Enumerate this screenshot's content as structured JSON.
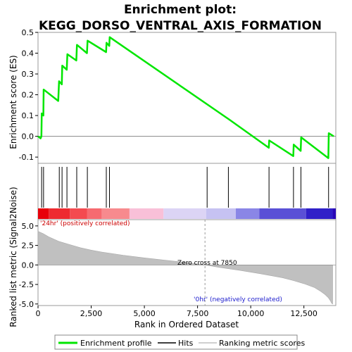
{
  "chart_data": {
    "type": "line",
    "title_line1": "Enrichment plot:",
    "title_line2": "KEGG_DORSO_VENTRAL_AXIS_FORMATION",
    "xlabel": "Rank in Ordered Dataset",
    "es_ylabel": "Enrichment score (ES)",
    "metric_ylabel": "Ranked list metric (Signal2Noise)",
    "xlim": [
      0,
      14000
    ],
    "es_ylim": [
      -0.13,
      0.5
    ],
    "metric_ylim": [
      -5.2,
      5.8
    ],
    "x_ticks": [
      0,
      2500,
      5000,
      7500,
      10000,
      12500
    ],
    "x_tick_labels": [
      "0",
      "2,500",
      "5,000",
      "7,500",
      "10,000",
      "12,500"
    ],
    "es_ticks": [
      -0.1,
      0.0,
      0.1,
      0.2,
      0.3,
      0.4,
      0.5
    ],
    "es_tick_labels": [
      "-0.1",
      "0.0",
      "0.1",
      "0.2",
      "0.3",
      "0.4",
      "0.5"
    ],
    "metric_ticks": [
      -5.0,
      -2.5,
      0.0,
      2.5,
      5.0
    ],
    "metric_tick_labels": [
      "-5.0",
      "-2.5",
      "0.0",
      "2.5",
      "5.0"
    ],
    "es_curve": {
      "x": [
        0,
        120,
        160,
        175,
        250,
        265,
        950,
        990,
        1120,
        1140,
        1350,
        1380,
        1800,
        1830,
        2300,
        2330,
        3200,
        3220,
        3350,
        3370,
        9000,
        10850,
        10870,
        12000,
        12020,
        12350,
        12370,
        13650,
        13670,
        13900
      ],
      "y": [
        0.0,
        -0.01,
        0.0,
        0.11,
        0.1,
        0.225,
        0.17,
        0.265,
        0.25,
        0.34,
        0.32,
        0.395,
        0.365,
        0.44,
        0.4,
        0.46,
        0.405,
        0.45,
        0.435,
        0.477,
        0.08,
        -0.055,
        -0.02,
        -0.095,
        -0.04,
        -0.07,
        -0.005,
        -0.105,
        0.015,
        0.0
      ]
    },
    "hits": [
      170,
      260,
      1000,
      1130,
      1360,
      1820,
      2320,
      3210,
      3360,
      7950,
      8950,
      10860,
      12010,
      12360,
      13660
    ],
    "metric_curve": {
      "x": [
        0,
        250,
        500,
        1000,
        1500,
        2000,
        2500,
        3000,
        4000,
        5000,
        6000,
        7000,
        7850,
        8500,
        9500,
        10500,
        11500,
        12000,
        12500,
        13000,
        13300,
        13500,
        13650,
        13750,
        13800,
        13850
      ],
      "y": [
        4.3,
        4.0,
        3.6,
        3.0,
        2.6,
        2.2,
        1.9,
        1.65,
        1.25,
        0.9,
        0.6,
        0.3,
        0.0,
        -0.3,
        -0.7,
        -1.15,
        -1.65,
        -2.0,
        -2.4,
        -2.9,
        -3.4,
        -3.8,
        -4.2,
        -4.6,
        -4.9,
        -5.0
      ]
    },
    "zero_cross_x": 7850,
    "zero_cross_label": "Zero cross at 7850",
    "pos_label": "'24hr' (positively correlated)",
    "neg_label": "'0hr' (negatively correlated)",
    "heat_colors": [
      "#e8000a",
      "#ee2a30",
      "#f44a50",
      "#f66a70",
      "#f78a8e",
      "#f9c0d8",
      "#dcd4f5",
      "#c6c2f2",
      "#8a86e6",
      "#5a50d6",
      "#3020c8",
      "#2a08b8"
    ],
    "heat_boundaries": [
      0,
      500,
      1500,
      2300,
      3000,
      4300,
      5900,
      7900,
      9300,
      10400,
      12600,
      13850
    ],
    "legend": [
      "Enrichment profile",
      "Hits",
      "Ranking metric scores"
    ],
    "colors": {
      "es_line": "#00e600",
      "hit": "#000000",
      "metric_fill": "#c0c0c0"
    }
  }
}
